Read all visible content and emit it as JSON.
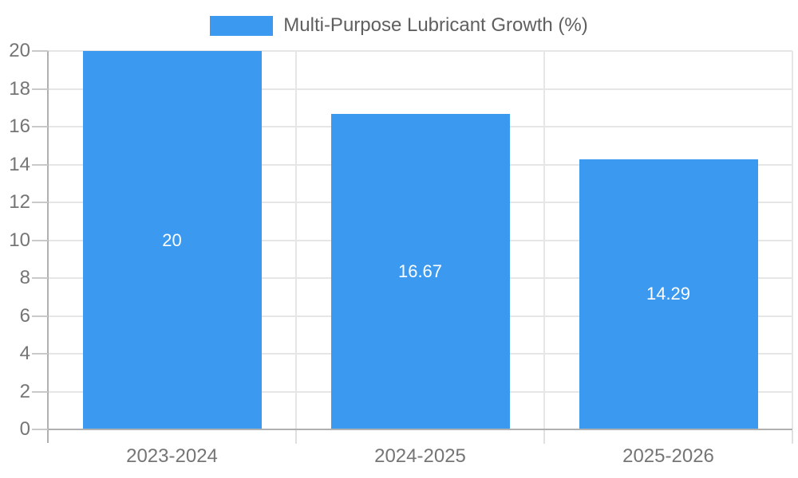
{
  "legend": {
    "label": "Multi-Purpose Lubricant Growth (%)"
  },
  "chart_data": {
    "type": "bar",
    "title": "",
    "legend": "Multi-Purpose Lubricant Growth (%)",
    "legend_position": "top-center",
    "categories": [
      "2023-2024",
      "2024-2025",
      "2025-2026"
    ],
    "values": [
      20,
      16.67,
      14.29
    ],
    "value_labels": [
      "20",
      "16.67",
      "14.29"
    ],
    "xlabel": "",
    "ylabel": "",
    "ylim": [
      0,
      20
    ],
    "yticks": [
      0,
      2,
      4,
      6,
      8,
      10,
      12,
      14,
      16,
      18,
      20
    ],
    "grid": true,
    "colors": {
      "bar": "#3b99ef",
      "value_label": "#ffffff",
      "gridline": "#e6e6e6",
      "axis_line": "#b0b0b0",
      "y_tick": "#c9c9c9",
      "x_tick": "#e0e0e0",
      "axis_label": "#757575",
      "legend_text": "#5f5f5f",
      "background": "#ffffff"
    }
  }
}
